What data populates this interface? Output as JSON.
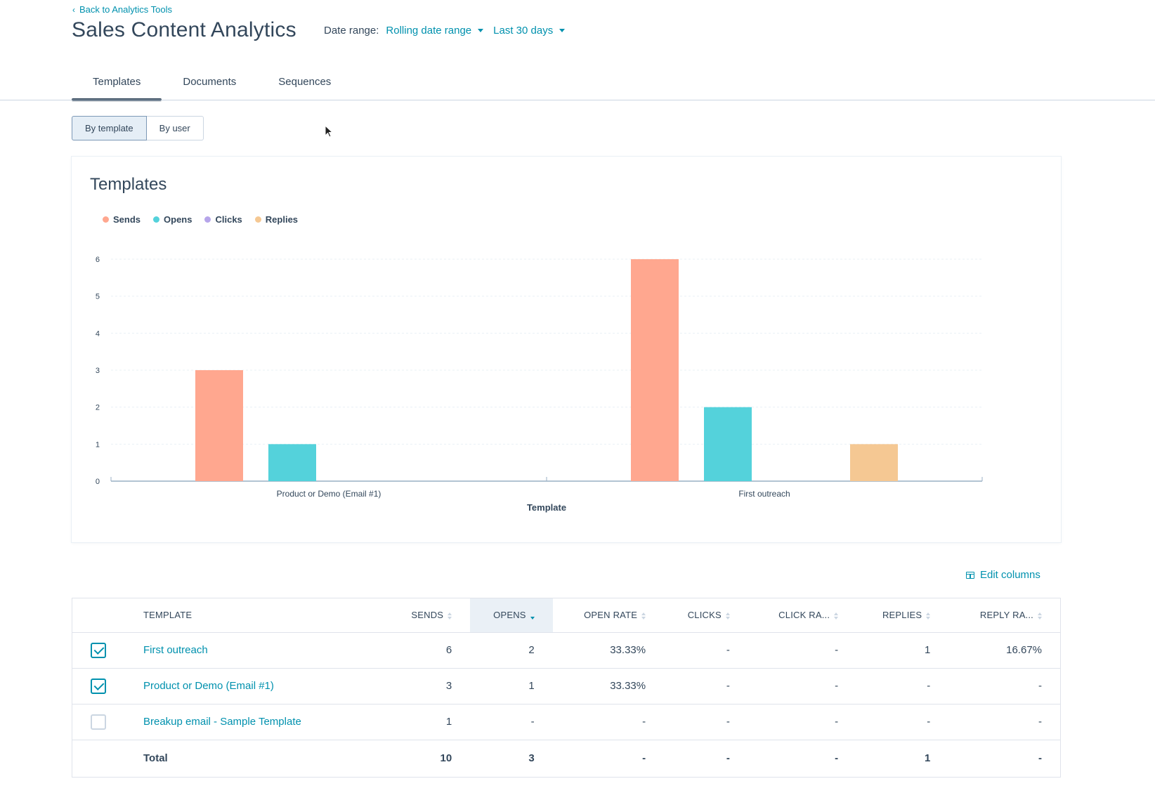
{
  "header": {
    "back_link": "Back to Analytics Tools",
    "title": "Sales Content Analytics",
    "date_range_label": "Date range:",
    "date_range_type": "Rolling date range",
    "date_range_value": "Last 30 days"
  },
  "tabs": [
    {
      "label": "Templates",
      "active": true
    },
    {
      "label": "Documents",
      "active": false
    },
    {
      "label": "Sequences",
      "active": false
    }
  ],
  "view_toggle": {
    "by_template": "By template",
    "by_user": "By user"
  },
  "card": {
    "title": "Templates"
  },
  "chart_data": {
    "type": "bar",
    "title": "Templates",
    "xlabel": "Template",
    "ylabel": "",
    "ylim": [
      0,
      6
    ],
    "yticks": [
      0,
      1,
      2,
      3,
      4,
      5,
      6
    ],
    "categories": [
      "Product or Demo (Email #1)",
      "First outreach"
    ],
    "series": [
      {
        "name": "Sends",
        "color": "#ffa78f",
        "values": [
          3,
          6
        ]
      },
      {
        "name": "Opens",
        "color": "#54d2db",
        "values": [
          1,
          2
        ]
      },
      {
        "name": "Clicks",
        "color": "#b6a5ea",
        "values": [
          0,
          0
        ]
      },
      {
        "name": "Replies",
        "color": "#f5c893",
        "values": [
          0,
          1
        ]
      }
    ],
    "grid": true,
    "legend": "top-left"
  },
  "table": {
    "edit_columns": "Edit columns",
    "headers": {
      "template": "Template",
      "sends": "Sends",
      "opens": "Opens",
      "open_rate": "Open rate",
      "clicks": "Clicks",
      "click_rate": "Click ra...",
      "replies": "Replies",
      "reply_rate": "Reply ra..."
    },
    "rows": [
      {
        "checked": true,
        "template": "First outreach",
        "sends": "6",
        "opens": "2",
        "open_rate": "33.33%",
        "clicks": "-",
        "click_rate": "-",
        "replies": "1",
        "reply_rate": "16.67%"
      },
      {
        "checked": true,
        "template": "Product or Demo (Email #1)",
        "sends": "3",
        "opens": "1",
        "open_rate": "33.33%",
        "clicks": "-",
        "click_rate": "-",
        "replies": "-",
        "reply_rate": "-"
      },
      {
        "checked": false,
        "template": "Breakup email - Sample Template",
        "sends": "1",
        "opens": "-",
        "open_rate": "-",
        "clicks": "-",
        "click_rate": "-",
        "replies": "-",
        "reply_rate": "-"
      }
    ],
    "total": {
      "label": "Total",
      "sends": "10",
      "opens": "3",
      "open_rate": "-",
      "clicks": "-",
      "click_rate": "-",
      "replies": "1",
      "reply_rate": "-"
    }
  }
}
